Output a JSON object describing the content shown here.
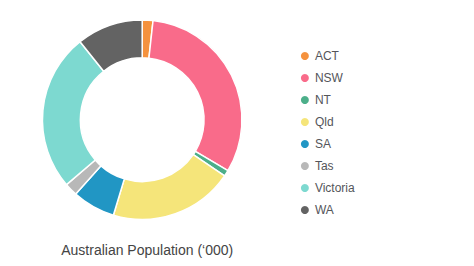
{
  "chart_data": {
    "type": "donut",
    "title": "Australian Population (‘000)",
    "categories": [
      "ACT",
      "NSW",
      "NT",
      "Qld",
      "SA",
      "Tas",
      "Victoria",
      "WA"
    ],
    "values": [
      431,
      7905,
      247,
      5002,
      1724,
      522,
      6359,
      2660
    ],
    "colors": [
      "#f5923e",
      "#f96b8a",
      "#4caf8a",
      "#f5e57a",
      "#2196c4",
      "#b8b8b8",
      "#7dd9d0",
      "#636363"
    ],
    "legend": "right"
  }
}
